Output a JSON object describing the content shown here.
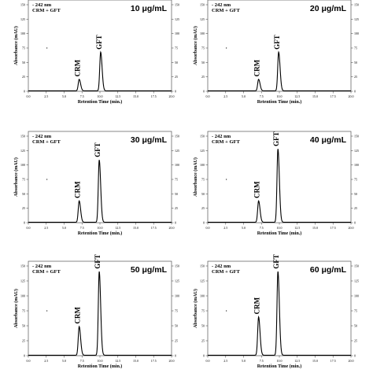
{
  "chart_data": [
    {
      "type": "line",
      "title": "10 μg/mL",
      "legend_lines": [
        "- 242 nm",
        "CRM + GFT"
      ],
      "xlabel": "Retention Time (min.)",
      "ylabel": "Absorbance (mAU)",
      "xlim": [
        0,
        20
      ],
      "ylim": [
        0,
        150
      ],
      "xticks": [
        "0.0",
        "2.5",
        "5.0",
        "7.5",
        "10.0",
        "12.5",
        "15.0",
        "17.5",
        "20.0"
      ],
      "yticks": [
        "0",
        "25",
        "50",
        "75",
        "100",
        "125",
        "150"
      ],
      "grid": false,
      "peaks": [
        {
          "name": "CRM",
          "x": 7.1,
          "y": 20
        },
        {
          "name": "GFT",
          "x": 10.1,
          "y": 67
        }
      ]
    },
    {
      "type": "line",
      "title": "20 μg/mL",
      "legend_lines": [
        "- 242 nm",
        "CRM + GFT"
      ],
      "xlabel": "Retention Time (min.)",
      "ylabel": "Absorbance (mAU)",
      "xlim": [
        0,
        20
      ],
      "ylim": [
        0,
        150
      ],
      "xticks": [
        "0.0",
        "2.5",
        "5.0",
        "7.5",
        "10.0",
        "12.5",
        "15.0",
        "17.5",
        "20.0"
      ],
      "yticks": [
        "0",
        "25",
        "50",
        "75",
        "100",
        "125",
        "150"
      ],
      "grid": false,
      "peaks": [
        {
          "name": "CRM",
          "x": 7.1,
          "y": 20
        },
        {
          "name": "GFT",
          "x": 9.9,
          "y": 67
        }
      ]
    },
    {
      "type": "line",
      "title": "30 μg/mL",
      "legend_lines": [
        "- 242 nm",
        "CRM + GFT"
      ],
      "xlabel": "Retention Time (min.)",
      "ylabel": "Absorbance (mAU)",
      "xlim": [
        0,
        20
      ],
      "ylim": [
        0,
        150
      ],
      "xticks": [
        "0.0",
        "2.5",
        "5.0",
        "7.5",
        "10.0",
        "12.5",
        "15.0",
        "17.5",
        "20.0"
      ],
      "yticks": [
        "0",
        "25",
        "50",
        "75",
        "100",
        "125",
        "150"
      ],
      "grid": false,
      "peaks": [
        {
          "name": "CRM",
          "x": 7.1,
          "y": 37
        },
        {
          "name": "GFT",
          "x": 9.9,
          "y": 108
        }
      ]
    },
    {
      "type": "line",
      "title": "40 μg/mL",
      "legend_lines": [
        "- 242 nm",
        "CRM + GFT"
      ],
      "xlabel": "Retention Time (min.)",
      "ylabel": "Absorbance (mAU)",
      "xlim": [
        0,
        20
      ],
      "ylim": [
        0,
        150
      ],
      "xticks": [
        "0.0",
        "2.5",
        "5.0",
        "7.5",
        "10.0",
        "12.5",
        "15.0",
        "17.5",
        "20.0"
      ],
      "yticks": [
        "0",
        "25",
        "50",
        "75",
        "100",
        "125",
        "150"
      ],
      "grid": false,
      "peaks": [
        {
          "name": "CRM",
          "x": 7.1,
          "y": 37
        },
        {
          "name": "GFT",
          "x": 9.8,
          "y": 127
        }
      ]
    },
    {
      "type": "line",
      "title": "50 μg/mL",
      "legend_lines": [
        "- 242 nm",
        "CRM + GFT"
      ],
      "xlabel": "Retention Time (min.)",
      "ylabel": "Absorbance (mAU)",
      "xlim": [
        0,
        20
      ],
      "ylim": [
        0,
        150
      ],
      "xticks": [
        "0.0",
        "2.5",
        "5.0",
        "7.5",
        "10.0",
        "12.5",
        "15.0",
        "17.5",
        "20.0"
      ],
      "yticks": [
        "0",
        "25",
        "50",
        "75",
        "100",
        "125",
        "150"
      ],
      "grid": false,
      "peaks": [
        {
          "name": "CRM",
          "x": 7.1,
          "y": 48
        },
        {
          "name": "GFT",
          "x": 9.9,
          "y": 140
        }
      ]
    },
    {
      "type": "line",
      "title": "60 μg/mL",
      "legend_lines": [
        "- 242 nm",
        "CRM + GFT"
      ],
      "xlabel": "Retention Time (min.)",
      "ylabel": "Absorbance (mAU)",
      "xlim": [
        0,
        20
      ],
      "ylim": [
        0,
        150
      ],
      "xticks": [
        "0.0",
        "2.5",
        "5.0",
        "7.5",
        "10.0",
        "12.5",
        "15.0",
        "17.5",
        "20.0"
      ],
      "yticks": [
        "0",
        "25",
        "50",
        "75",
        "100",
        "125",
        "150"
      ],
      "grid": false,
      "peaks": [
        {
          "name": "CRM",
          "x": 7.1,
          "y": 64
        },
        {
          "name": "GFT",
          "x": 9.8,
          "y": 140
        }
      ]
    }
  ],
  "colors": {
    "line": "#000000",
    "axis": "#555555",
    "background": "#ffffff"
  }
}
